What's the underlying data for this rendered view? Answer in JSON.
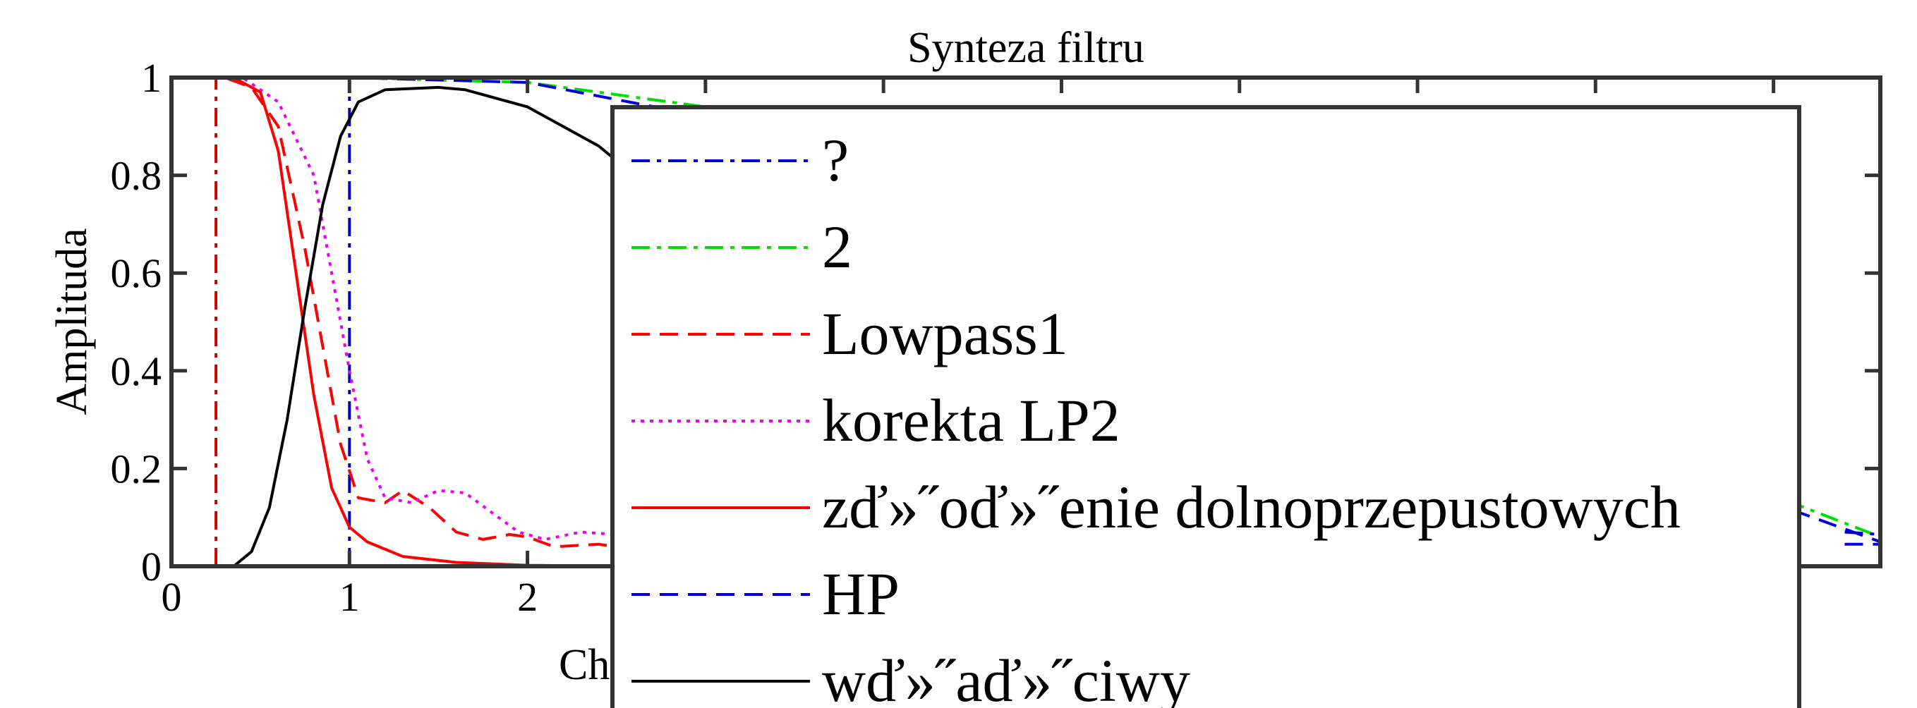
{
  "chart_data": {
    "type": "line",
    "title": "Synteza filtru",
    "xlabel": "Ch",
    "ylabel": "Amplituda",
    "xlim": [
      0,
      9.6
    ],
    "ylim": [
      0,
      1
    ],
    "x_ticks": [
      0,
      1,
      2
    ],
    "x_tick_labels": [
      "0",
      "1",
      "2"
    ],
    "x_tick_marks": [
      0,
      1,
      2,
      3,
      4,
      5,
      6,
      7,
      8,
      9
    ],
    "y_ticks": [
      0,
      0.2,
      0.4,
      0.6,
      0.8,
      1
    ],
    "y_tick_labels": [
      "0",
      "0.2",
      "0.4",
      "0.6",
      "0.8",
      "1"
    ],
    "grid": false,
    "legend_position": "center-right, overlapping plot",
    "series": [
      {
        "name": "?",
        "color": "#0000cc",
        "style": "dash-dot",
        "points": [
          [
            1,
            0
          ],
          [
            1,
            1
          ]
        ]
      },
      {
        "name": "2",
        "color": "#00dd00",
        "style": "dash-dot",
        "points": [
          [
            0,
            1
          ],
          [
            1,
            1
          ],
          [
            2,
            0.99
          ],
          [
            3,
            0.94
          ],
          [
            4,
            0.85
          ],
          [
            9.6,
            0.06
          ]
        ]
      },
      {
        "name": "Lowpass1",
        "color": "#ff0000",
        "style": "dashed",
        "points": [
          [
            0,
            1
          ],
          [
            0.3,
            1
          ],
          [
            0.45,
            0.98
          ],
          [
            0.6,
            0.9
          ],
          [
            0.75,
            0.65
          ],
          [
            0.85,
            0.45
          ],
          [
            0.95,
            0.25
          ],
          [
            1.05,
            0.14
          ],
          [
            1.2,
            0.13
          ],
          [
            1.3,
            0.155
          ],
          [
            1.45,
            0.12
          ],
          [
            1.6,
            0.07
          ],
          [
            1.75,
            0.055
          ],
          [
            1.9,
            0.065
          ],
          [
            2.0,
            0.06
          ],
          [
            2.15,
            0.04
          ],
          [
            2.4,
            0.045
          ],
          [
            2.5,
            0.04
          ]
        ]
      },
      {
        "name": "korekta LP2",
        "color": "#ee00ee",
        "style": "dotted",
        "points": [
          [
            0,
            1
          ],
          [
            0.4,
            1
          ],
          [
            0.6,
            0.95
          ],
          [
            0.8,
            0.8
          ],
          [
            0.9,
            0.6
          ],
          [
            1.0,
            0.4
          ],
          [
            1.1,
            0.22
          ],
          [
            1.2,
            0.14
          ],
          [
            1.35,
            0.13
          ],
          [
            1.5,
            0.155
          ],
          [
            1.65,
            0.15
          ],
          [
            1.8,
            0.11
          ],
          [
            1.95,
            0.07
          ],
          [
            2.1,
            0.055
          ],
          [
            2.3,
            0.07
          ],
          [
            2.5,
            0.065
          ],
          [
            2.6,
            0.05
          ]
        ]
      },
      {
        "name": "zď»˝oď»˝enie dolnoprzepustowych",
        "color": "#ff0000",
        "style": "solid",
        "points": [
          [
            0,
            1
          ],
          [
            0.35,
            1
          ],
          [
            0.5,
            0.97
          ],
          [
            0.6,
            0.85
          ],
          [
            0.7,
            0.6
          ],
          [
            0.8,
            0.35
          ],
          [
            0.9,
            0.16
          ],
          [
            1.0,
            0.08
          ],
          [
            1.1,
            0.05
          ],
          [
            1.3,
            0.02
          ],
          [
            1.6,
            0.008
          ],
          [
            2.0,
            0.002
          ],
          [
            2.5,
            0
          ]
        ]
      },
      {
        "name": "HP",
        "color": "#0000dd",
        "style": "dashed",
        "points": [
          [
            0,
            1
          ],
          [
            1,
            1
          ],
          [
            2,
            0.99
          ],
          [
            3,
            0.92
          ],
          [
            9.6,
            0.05
          ]
        ]
      },
      {
        "name": "wď»˝aď»˝ciwy",
        "color": "#000000",
        "style": "solid",
        "points": [
          [
            0,
            0
          ],
          [
            0.35,
            0
          ],
          [
            0.45,
            0.03
          ],
          [
            0.55,
            0.12
          ],
          [
            0.65,
            0.3
          ],
          [
            0.75,
            0.53
          ],
          [
            0.85,
            0.74
          ],
          [
            0.95,
            0.88
          ],
          [
            1.05,
            0.95
          ],
          [
            1.2,
            0.975
          ],
          [
            1.5,
            0.98
          ],
          [
            1.65,
            0.975
          ],
          [
            1.8,
            0.96
          ],
          [
            2.0,
            0.94
          ],
          [
            2.2,
            0.9
          ],
          [
            2.4,
            0.86
          ],
          [
            2.5,
            0.83
          ]
        ]
      },
      {
        "name": "",
        "color": "#cc0000",
        "style": "dash-dot",
        "points": [
          [
            0.25,
            0
          ],
          [
            0.25,
            1
          ]
        ]
      }
    ],
    "hidden_right_segments": [
      {
        "color": "#0000cc",
        "style": "dash-dot",
        "points": [
          [
            9.4,
            0.07
          ],
          [
            9.6,
            0.065
          ]
        ]
      },
      {
        "color": "#0000dd",
        "style": "dashed",
        "points": [
          [
            9.4,
            0.045
          ],
          [
            9.6,
            0.045
          ]
        ]
      }
    ]
  }
}
